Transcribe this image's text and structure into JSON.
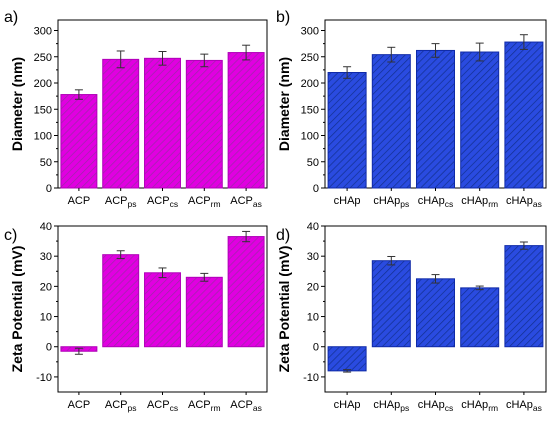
{
  "colors": {
    "magenta": "#e100e1",
    "blue": "#1f3fd6",
    "hatch": "#7a2a8a",
    "hatch_blue": "#0a2a88"
  },
  "chart_data": [
    {
      "panel_label": "a)",
      "type": "bar",
      "ylabel": "Diameter (nm)",
      "ylim": [
        0,
        320
      ],
      "yticks": [
        0,
        50,
        100,
        150,
        200,
        250,
        300
      ],
      "color": "magenta",
      "categories": [
        {
          "base": "ACP",
          "sub": ""
        },
        {
          "base": "ACP",
          "sub": "ps"
        },
        {
          "base": "ACP",
          "sub": "cs"
        },
        {
          "base": "ACP",
          "sub": "rm"
        },
        {
          "base": "ACP",
          "sub": "as"
        }
      ],
      "values": [
        178,
        245,
        247,
        243,
        258
      ],
      "errors": [
        9,
        16,
        13,
        12,
        14
      ]
    },
    {
      "panel_label": "b)",
      "type": "bar",
      "ylabel": "Diameter (nm)",
      "ylim": [
        0,
        320
      ],
      "yticks": [
        0,
        50,
        100,
        150,
        200,
        250,
        300
      ],
      "color": "blue",
      "categories": [
        {
          "base": "cHAp",
          "sub": ""
        },
        {
          "base": "cHAp",
          "sub": "ps"
        },
        {
          "base": "cHAp",
          "sub": "cs"
        },
        {
          "base": "cHAp",
          "sub": "rm"
        },
        {
          "base": "cHAp",
          "sub": "as"
        }
      ],
      "values": [
        220,
        254,
        262,
        259,
        278
      ],
      "errors": [
        11,
        14,
        13,
        17,
        14
      ]
    },
    {
      "panel_label": "c)",
      "type": "bar",
      "ylabel": "Zeta Potential (mV)",
      "ylim": [
        -15,
        40
      ],
      "yticks": [
        -10,
        0,
        10,
        20,
        30,
        40
      ],
      "color": "magenta",
      "categories": [
        {
          "base": "ACP",
          "sub": ""
        },
        {
          "base": "ACP",
          "sub": "ps"
        },
        {
          "base": "ACP",
          "sub": "cs"
        },
        {
          "base": "ACP",
          "sub": "rm"
        },
        {
          "base": "ACP",
          "sub": "as"
        }
      ],
      "values": [
        -1.5,
        30.5,
        24.5,
        23.0,
        36.5
      ],
      "errors": [
        1.0,
        1.3,
        1.6,
        1.3,
        1.7
      ]
    },
    {
      "panel_label": "d)",
      "type": "bar",
      "ylabel": "Zeta Potential (mV)",
      "ylim": [
        -15,
        40
      ],
      "yticks": [
        -10,
        0,
        10,
        20,
        30,
        40
      ],
      "color": "blue",
      "categories": [
        {
          "base": "cHAp",
          "sub": ""
        },
        {
          "base": "cHAp",
          "sub": "ps"
        },
        {
          "base": "cHAp",
          "sub": "cs"
        },
        {
          "base": "cHAp",
          "sub": "rm"
        },
        {
          "base": "cHAp",
          "sub": "as"
        }
      ],
      "values": [
        -8.0,
        28.5,
        22.5,
        19.5,
        33.5
      ],
      "errors": [
        0.4,
        1.4,
        1.4,
        0.6,
        1.2
      ]
    }
  ]
}
